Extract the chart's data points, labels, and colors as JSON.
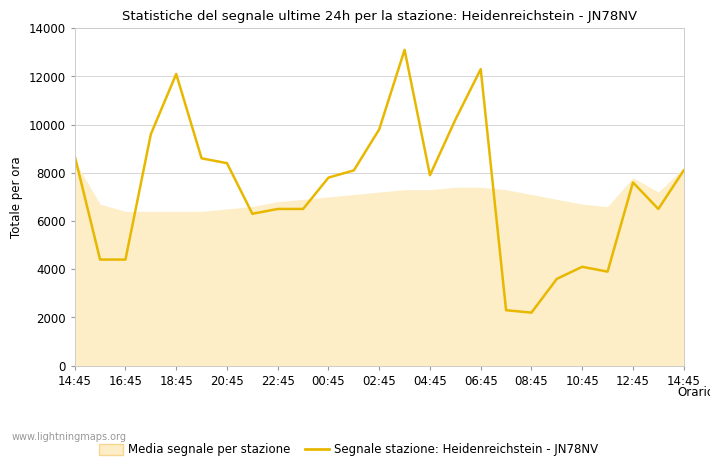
{
  "title": "Statistiche del segnale ultime 24h per la stazione: Heidenreichstein - JN78NV",
  "xlabel": "Orario",
  "ylabel": "Totale per ora",
  "xtick_labels": [
    "14:45",
    "16:45",
    "18:45",
    "20:45",
    "22:45",
    "00:45",
    "02:45",
    "04:45",
    "06:45",
    "08:45",
    "10:45",
    "12:45",
    "14:45"
  ],
  "ylim": [
    0,
    14000
  ],
  "yticks": [
    0,
    2000,
    4000,
    6000,
    8000,
    10000,
    12000,
    14000
  ],
  "legend_labels": [
    "Media segnale per stazione",
    "Segnale stazione: Heidenreichstein - JN78NV"
  ],
  "fill_color": "#FDEEC8",
  "fill_edge_color": "#F5D78E",
  "line_color": "#E8B800",
  "line_width": 1.8,
  "background_color": "#ffffff",
  "watermark": "www.lightningmaps.org",
  "signal_x": [
    0,
    1,
    2,
    3,
    4,
    5,
    6,
    7,
    8,
    9,
    10,
    11,
    12,
    13,
    14,
    15,
    16,
    17,
    18,
    19,
    20,
    21,
    22,
    23,
    24
  ],
  "signal_y": [
    8700,
    4400,
    4400,
    9600,
    12100,
    8600,
    8400,
    6300,
    6500,
    6500,
    7800,
    8100,
    9800,
    13100,
    7900,
    10200,
    12300,
    2300,
    2200,
    3600,
    4100,
    3900,
    7600,
    6500,
    8100
  ],
  "fill_y": [
    8500,
    6700,
    6400,
    6400,
    6400,
    6400,
    6500,
    6600,
    6800,
    6900,
    7000,
    7100,
    7200,
    7300,
    7300,
    7400,
    7400,
    7300,
    7100,
    6900,
    6700,
    6600,
    7800,
    7200,
    8200
  ]
}
